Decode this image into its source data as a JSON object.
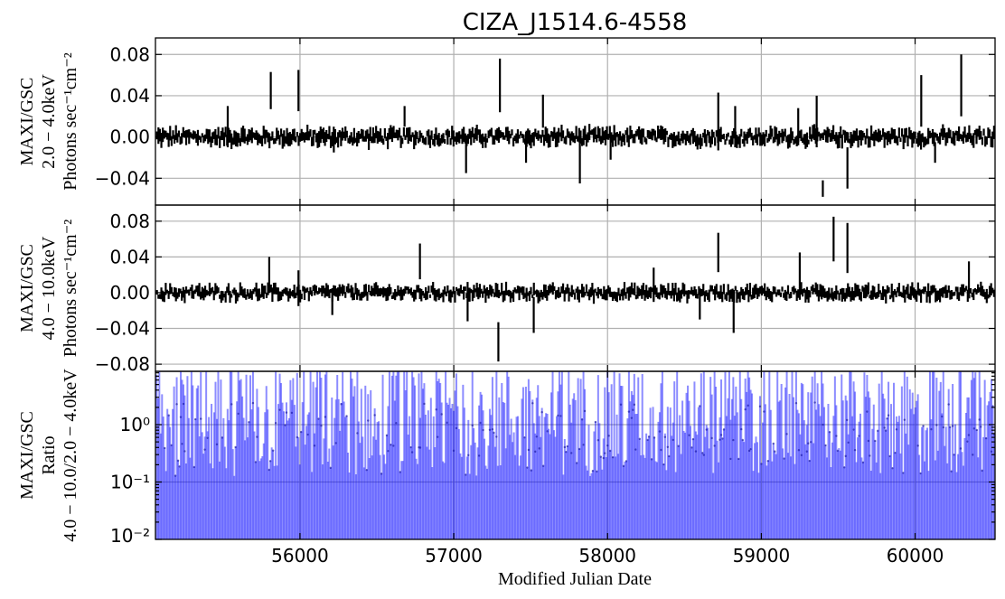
{
  "chart_data": {
    "type": "scatter",
    "title": "CIZA_J1514.6-4558",
    "xlabel": "Modified Julian Date",
    "xlim": [
      55060,
      60520
    ],
    "xticks": [
      56000,
      57000,
      58000,
      59000,
      60000
    ],
    "grid": true,
    "panels": [
      {
        "ylabel_lines": [
          "MAXI/GSC",
          "2.0 − 4.0keV",
          "Photons sec⁻¹cm⁻²"
        ],
        "ylim": [
          -0.066,
          0.096
        ],
        "yticks": [
          0.08,
          0.04,
          0.0,
          -0.04
        ],
        "ytick_labels": [
          "0.08",
          "0.04",
          "0.00",
          "−0.04"
        ],
        "yscale": "linear",
        "color": "#000000",
        "series": [
          {
            "x": [
              55530,
              55810,
              55990,
              56220,
              56680,
              57080,
              57300,
              57470,
              57580,
              57820,
              58020,
              58720,
              58830,
              59240,
              59360,
              59400,
              59560,
              60040,
              60130,
              60300
            ],
            "y": [
              0.01,
              0.045,
              0.045,
              -0.005,
              0.02,
              -0.02,
              0.05,
              -0.01,
              0.025,
              -0.02,
              -0.01,
              0.015,
              0.01,
              0.01,
              0.015,
              -0.05,
              -0.03,
              0.035,
              -0.015,
              0.05
            ],
            "err": [
              0.02,
              0.018,
              0.02,
              0.01,
              0.01,
              0.015,
              0.026,
              0.015,
              0.016,
              0.025,
              0.012,
              0.028,
              0.02,
              0.018,
              0.025,
              0.008,
              0.02,
              0.025,
              0.01,
              0.03
            ]
          }
        ]
      },
      {
        "ylabel_lines": [
          "MAXI/GSC",
          "4.0 − 10.0keV",
          "Photons sec⁻¹cm⁻²"
        ],
        "ylim": [
          -0.088,
          0.098
        ],
        "yticks": [
          0.08,
          0.04,
          0.0,
          -0.04,
          -0.08
        ],
        "ytick_labels": [
          "0.08",
          "0.04",
          "0.00",
          "−0.04",
          "−0.08"
        ],
        "yscale": "linear",
        "color": "#000000",
        "series": [
          {
            "x": [
              55800,
              55990,
              56210,
              56780,
              57090,
              57290,
              57520,
              58300,
              58600,
              58720,
              58820,
              59250,
              59470,
              59560,
              60350
            ],
            "y": [
              0.02,
              0.005,
              -0.01,
              0.035,
              -0.01,
              -0.055,
              -0.025,
              0.01,
              -0.015,
              0.045,
              -0.025,
              0.025,
              0.06,
              0.05,
              0.015
            ],
            "err": [
              0.02,
              0.02,
              0.015,
              0.02,
              0.022,
              0.022,
              0.02,
              0.018,
              0.015,
              0.022,
              0.02,
              0.02,
              0.025,
              0.028,
              0.02
            ]
          }
        ]
      },
      {
        "ylabel_lines": [
          "MAXI/GSC",
          "Ratio",
          "4.0 − 10.0/2.0 − 4.0keV"
        ],
        "ylim": [
          0.01,
          8.5
        ],
        "yticks": [
          1,
          0.1,
          0.01
        ],
        "ytick_labels": [
          "10⁰",
          "10⁻¹",
          "10⁻²"
        ],
        "yscale": "log",
        "color": "#0000ff"
      }
    ]
  }
}
